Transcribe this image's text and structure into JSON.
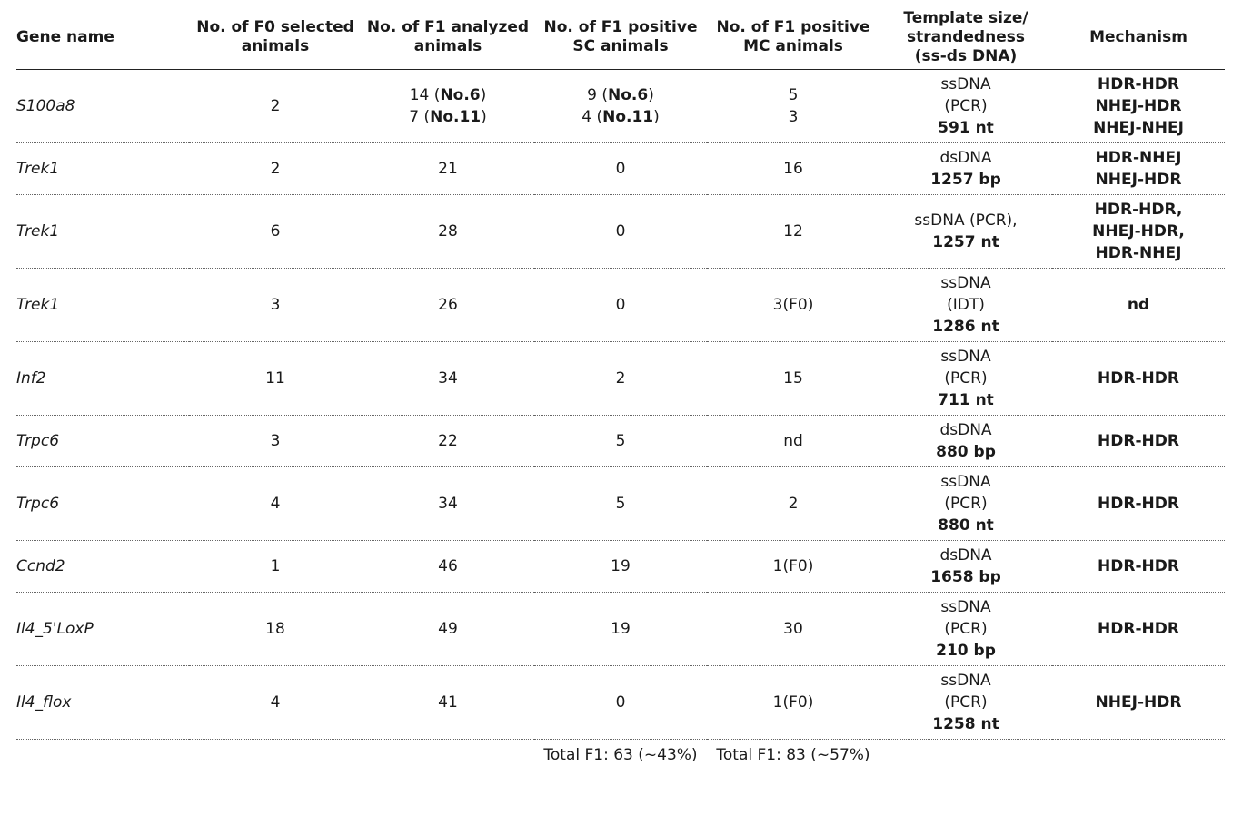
{
  "headers": {
    "gene": "Gene name",
    "f0_selected": [
      "No. of F0 selected",
      "animals"
    ],
    "f1_analyzed": [
      "No. of F1 analyzed",
      "animals"
    ],
    "f1_pos_sc": [
      "No. of F1 positive",
      "SC animals"
    ],
    "f1_pos_mc": [
      "No. of F1 positive",
      "MC animals"
    ],
    "template": [
      "Template size/",
      "strandedness",
      "(ss-ds DNA)"
    ],
    "mechanism": "Mechanism"
  },
  "rows": [
    {
      "gene": "S100a8",
      "f0": "2",
      "f1_analyzed": [
        {
          "n": "14 (",
          "b": "No.6",
          "a": ")"
        },
        {
          "n": "7 (",
          "b": "No.11",
          "a": ")"
        }
      ],
      "sc": [
        {
          "n": "9 (",
          "b": "No.6",
          "a": ")"
        },
        {
          "n": "4 (",
          "b": "No.11",
          "a": ")"
        }
      ],
      "mc": [
        "5",
        "3"
      ],
      "template": [
        {
          "t": "ssDNA",
          "bold": false
        },
        {
          "t": "(PCR)",
          "bold": false
        },
        {
          "t": "591 nt",
          "bold": true
        }
      ],
      "mechanism": [
        "HDR-HDR",
        "NHEJ-HDR",
        "NHEJ-NHEJ"
      ]
    },
    {
      "gene": "Trek1",
      "f0": "2",
      "f1_analyzed": "21",
      "sc": "0",
      "mc": "16",
      "template": [
        {
          "t": "dsDNA",
          "bold": false
        },
        {
          "t": "1257 bp",
          "bold": true
        }
      ],
      "mechanism": [
        "HDR-NHEJ",
        "NHEJ-HDR"
      ]
    },
    {
      "gene": "Trek1",
      "f0": "6",
      "f1_analyzed": "28",
      "sc": "0",
      "mc": "12",
      "template": [
        {
          "t": "ssDNA (PCR),",
          "bold": false
        },
        {
          "t": "1257 nt",
          "bold": true
        }
      ],
      "mechanism": [
        "HDR-HDR,",
        "NHEJ-HDR,",
        "HDR-NHEJ"
      ]
    },
    {
      "gene": "Trek1",
      "f0": "3",
      "f1_analyzed": "26",
      "sc": "0",
      "mc": "3(F0)",
      "template": [
        {
          "t": "ssDNA",
          "bold": false
        },
        {
          "t": "(IDT)",
          "bold": false
        },
        {
          "t": "1286 nt",
          "bold": true
        }
      ],
      "mechanism": [
        "nd"
      ]
    },
    {
      "gene": "Inf2",
      "f0": "11",
      "f1_analyzed": "34",
      "sc": "2",
      "mc": "15",
      "template": [
        {
          "t": "ssDNA",
          "bold": false
        },
        {
          "t": "(PCR)",
          "bold": false
        },
        {
          "t": "711 nt",
          "bold": true
        }
      ],
      "mechanism": [
        "HDR-HDR"
      ]
    },
    {
      "gene": "Trpc6",
      "f0": "3",
      "f1_analyzed": "22",
      "sc": "5",
      "mc": "nd",
      "template": [
        {
          "t": "dsDNA",
          "bold": false
        },
        {
          "t": "880 bp",
          "bold": true
        }
      ],
      "mechanism": [
        "HDR-HDR"
      ]
    },
    {
      "gene": "Trpc6",
      "f0": "4",
      "f1_analyzed": "34",
      "sc": "5",
      "mc": "2",
      "template": [
        {
          "t": "ssDNA",
          "bold": false
        },
        {
          "t": "(PCR)",
          "bold": false
        },
        {
          "t": "880 nt",
          "bold": true
        }
      ],
      "mechanism": [
        "HDR-HDR"
      ]
    },
    {
      "gene": "Ccnd2",
      "f0": "1",
      "f1_analyzed": "46",
      "sc": "19",
      "mc": "1(F0)",
      "template": [
        {
          "t": "dsDNA",
          "bold": false
        },
        {
          "t": "1658 bp",
          "bold": true
        }
      ],
      "mechanism": [
        "HDR-HDR"
      ]
    },
    {
      "gene": "Il4_5'LoxP",
      "f0": "18",
      "f1_analyzed": "49",
      "sc": "19",
      "mc": "30",
      "template": [
        {
          "t": "ssDNA",
          "bold": false
        },
        {
          "t": "(PCR)",
          "bold": false
        },
        {
          "t": "210 bp",
          "bold": true
        }
      ],
      "mechanism": [
        "HDR-HDR"
      ]
    },
    {
      "gene": "Il4_flox",
      "f0": "4",
      "f1_analyzed": "41",
      "sc": "0",
      "mc": "1(F0)",
      "template": [
        {
          "t": "ssDNA",
          "bold": false
        },
        {
          "t": "(PCR)",
          "bold": false
        },
        {
          "t": "1258 nt",
          "bold": true
        }
      ],
      "mechanism": [
        "NHEJ-HDR"
      ]
    }
  ],
  "totals": {
    "sc": "Total F1: 63 (~43%)",
    "mc": "Total F1: 83 (~57%)"
  }
}
